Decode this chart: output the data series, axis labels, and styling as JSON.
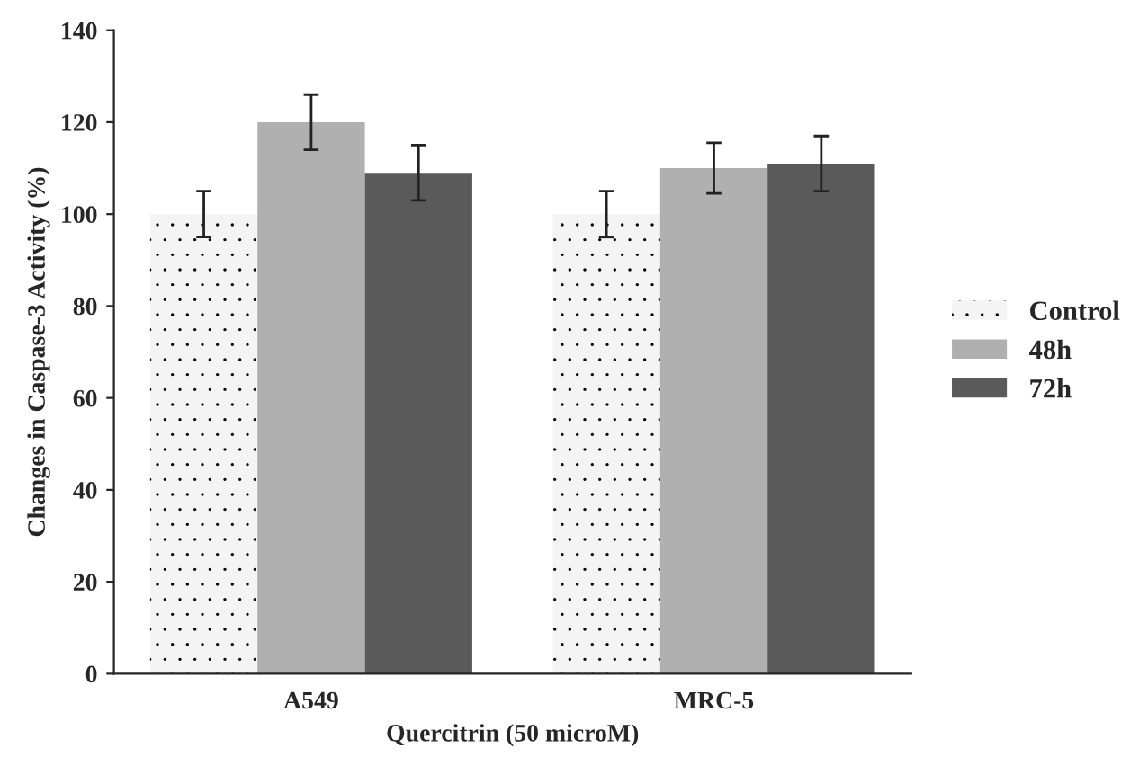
{
  "chart_data": {
    "type": "bar",
    "xlabel": "Quercitrin (50 microM)",
    "ylabel": "Changes in Caspase-3 Activity (%)",
    "categories": [
      "A549",
      "MRC-5"
    ],
    "series": [
      {
        "name": "Control",
        "color": "#f4f4f4",
        "values": [
          100,
          100
        ],
        "errors": [
          5,
          5
        ]
      },
      {
        "name": "48h",
        "color": "#b0b0b0",
        "values": [
          120,
          110
        ],
        "errors": [
          6,
          5.5
        ]
      },
      {
        "name": "72h",
        "color": "#5a5a5a",
        "values": [
          109,
          111
        ],
        "errors": [
          6,
          6
        ]
      }
    ],
    "ylim": [
      0,
      140
    ],
    "yticks": [
      0,
      20,
      40,
      60,
      80,
      100,
      120,
      140
    ],
    "grid": false,
    "legend": "right"
  }
}
